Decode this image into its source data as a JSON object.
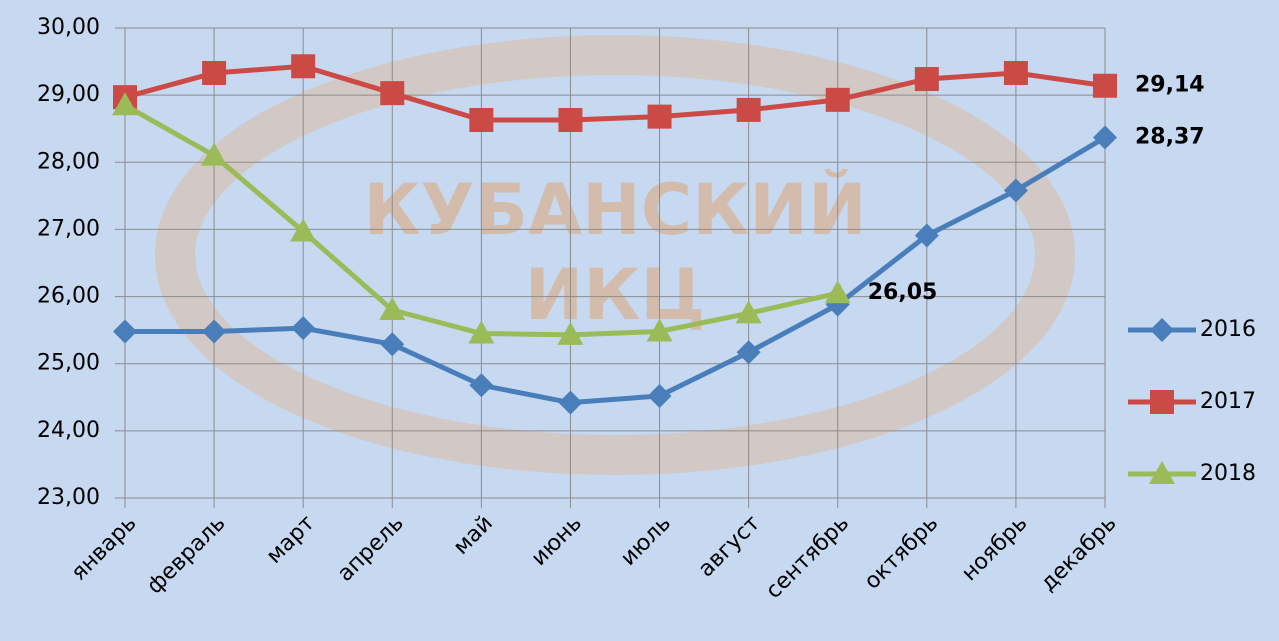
{
  "chart_data": {
    "type": "line",
    "watermark": [
      "КУБАНСКИЙ",
      "ИКЦ"
    ],
    "categories": [
      "январь",
      "февраль",
      "март",
      "апрель",
      "май",
      "июнь",
      "июль",
      "август",
      "сентябрь",
      "октябрь",
      "ноябрь",
      "декабрь"
    ],
    "series": [
      {
        "name": "2016",
        "color": "#4a7ebb",
        "marker": "diamond",
        "values": [
          25.48,
          25.48,
          25.53,
          25.29,
          24.68,
          24.42,
          24.52,
          25.17,
          25.88,
          26.91,
          27.58,
          28.37
        ],
        "value_labels": [
          null,
          null,
          null,
          null,
          null,
          null,
          null,
          null,
          null,
          null,
          null,
          "28,37"
        ]
      },
      {
        "name": "2017",
        "color": "#cc4a45",
        "marker": "square",
        "values": [
          28.97,
          29.33,
          29.43,
          29.03,
          28.63,
          28.63,
          28.68,
          28.78,
          28.93,
          29.24,
          29.33,
          29.14
        ],
        "value_labels": [
          null,
          null,
          null,
          null,
          null,
          null,
          null,
          null,
          null,
          null,
          null,
          "29,14"
        ]
      },
      {
        "name": "2018",
        "color": "#9bbb59",
        "marker": "triangle",
        "values": [
          28.85,
          28.1,
          26.97,
          25.8,
          25.45,
          25.43,
          25.48,
          25.75,
          26.05,
          null,
          null,
          null
        ],
        "value_labels": [
          null,
          null,
          null,
          null,
          null,
          null,
          null,
          null,
          "26,05",
          null,
          null,
          null
        ]
      }
    ],
    "ylim": [
      23,
      30
    ],
    "yticks": [
      {
        "value": 23,
        "label": "23,00"
      },
      {
        "value": 24,
        "label": "24,00"
      },
      {
        "value": 25,
        "label": "25,00"
      },
      {
        "value": 26,
        "label": "26,00"
      },
      {
        "value": 27,
        "label": "27,00"
      },
      {
        "value": 28,
        "label": "28,00"
      },
      {
        "value": 29,
        "label": "29,00"
      },
      {
        "value": 30,
        "label": "30,00"
      }
    ],
    "grid": true,
    "legend": "right"
  }
}
